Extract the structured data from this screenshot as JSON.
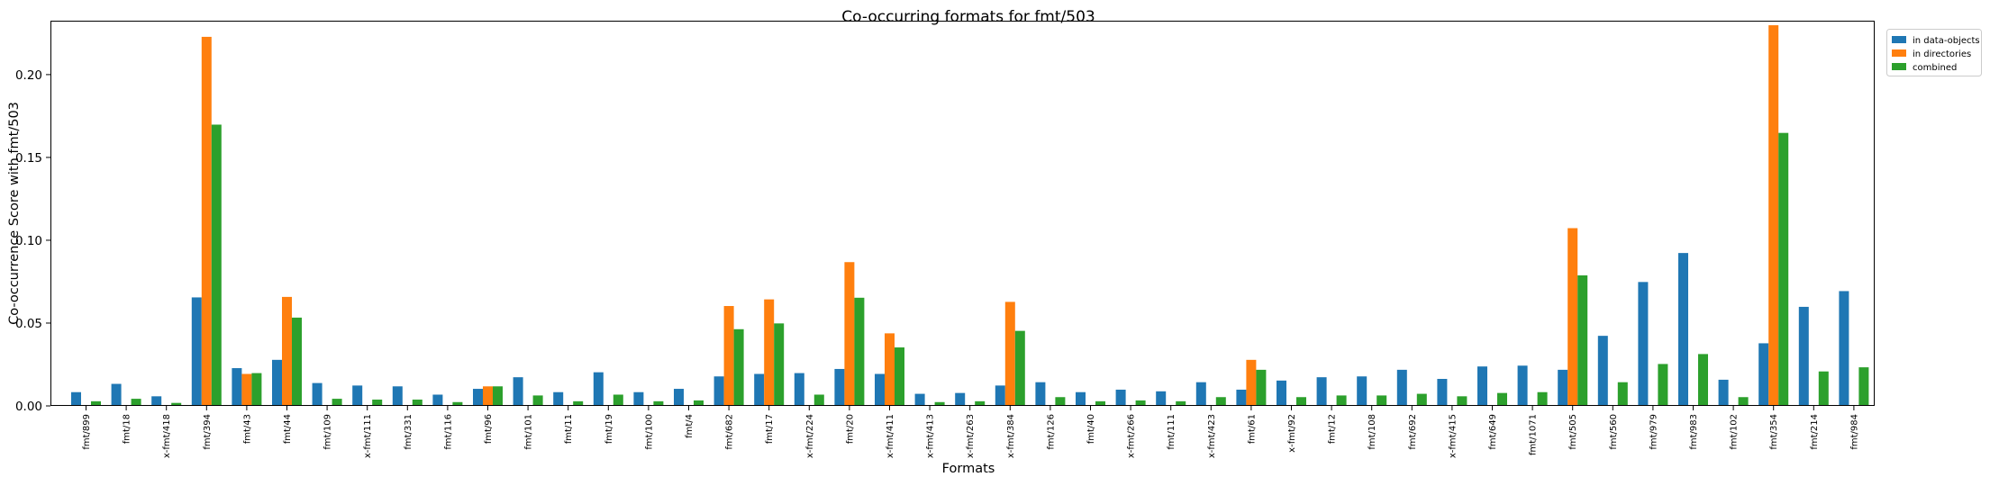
{
  "chart_data": {
    "type": "bar",
    "title": "Co-occurring formats for fmt/503",
    "xlabel": "Formats",
    "ylabel": "Co-occurrence Score with fmt/503",
    "ylim": [
      0,
      0.232
    ],
    "yticks": [
      0.0,
      0.05,
      0.1,
      0.15,
      0.2
    ],
    "ytick_labels": [
      "0.00",
      "0.05",
      "0.10",
      "0.15",
      "0.20"
    ],
    "grid": false,
    "legend_position": "top-right, outside plot",
    "categories": [
      "fmt/899",
      "fmt/18",
      "x-fmt/418",
      "fmt/394",
      "fmt/43",
      "fmt/44",
      "fmt/109",
      "x-fmt/111",
      "fmt/331",
      "fmt/116",
      "fmt/96",
      "fmt/101",
      "fmt/11",
      "fmt/19",
      "fmt/100",
      "fmt/4",
      "fmt/682",
      "fmt/17",
      "x-fmt/224",
      "fmt/20",
      "x-fmt/411",
      "x-fmt/413",
      "x-fmt/263",
      "x-fmt/384",
      "fmt/126",
      "fmt/40",
      "x-fmt/266",
      "fmt/111",
      "x-fmt/423",
      "fmt/61",
      "x-fmt/92",
      "fmt/12",
      "fmt/108",
      "fmt/692",
      "x-fmt/415",
      "fmt/649",
      "fmt/1071",
      "fmt/505",
      "fmt/560",
      "fmt/979",
      "fmt/983",
      "fmt/102",
      "fmt/354",
      "fmt/214",
      "fmt/984"
    ],
    "series": [
      {
        "name": "in data-objects",
        "color": "#1f77b4",
        "values": [
          0.0083,
          0.0133,
          0.0058,
          0.0655,
          0.0228,
          0.0278,
          0.0138,
          0.0123,
          0.0118,
          0.0068,
          0.0103,
          0.0173,
          0.0083,
          0.0203,
          0.0083,
          0.0103,
          0.0178,
          0.0193,
          0.0198,
          0.0223,
          0.0193,
          0.0073,
          0.0078,
          0.0123,
          0.0143,
          0.0083,
          0.0098,
          0.0088,
          0.0143,
          0.0098,
          0.0153,
          0.0173,
          0.0178,
          0.0218,
          0.0163,
          0.0238,
          0.0243,
          0.0218,
          0.0423,
          0.0748,
          0.0923,
          0.0158,
          0.0378,
          0.0598,
          0.0693
        ]
      },
      {
        "name": "in directories",
        "color": "#ff7f0e",
        "values": [
          0,
          0,
          0,
          0.2228,
          0.0193,
          0.0658,
          0,
          0,
          0,
          0,
          0.0118,
          0,
          0,
          0,
          0,
          0,
          0.0603,
          0.0643,
          0,
          0.0868,
          0.0438,
          0,
          0,
          0.0628,
          0,
          0,
          0,
          0,
          0,
          0.0278,
          0,
          0,
          0,
          0,
          0,
          0,
          0,
          0.1073,
          0,
          0,
          0,
          0,
          0.2298,
          0,
          0
        ]
      },
      {
        "name": "combined",
        "color": "#2ca02c",
        "values": [
          0.0028,
          0.0043,
          0.0018,
          0.1698,
          0.0198,
          0.0533,
          0.0043,
          0.0038,
          0.0038,
          0.0023,
          0.0118,
          0.0063,
          0.0028,
          0.0068,
          0.0028,
          0.0033,
          0.0463,
          0.0498,
          0.0068,
          0.0653,
          0.0353,
          0.0023,
          0.0028,
          0.0453,
          0.0053,
          0.0028,
          0.0033,
          0.0028,
          0.0053,
          0.0218,
          0.0053,
          0.0063,
          0.0063,
          0.0073,
          0.0058,
          0.0078,
          0.0083,
          0.0788,
          0.0143,
          0.0253,
          0.0313,
          0.0053,
          0.1648,
          0.0208,
          0.0233
        ]
      }
    ]
  }
}
